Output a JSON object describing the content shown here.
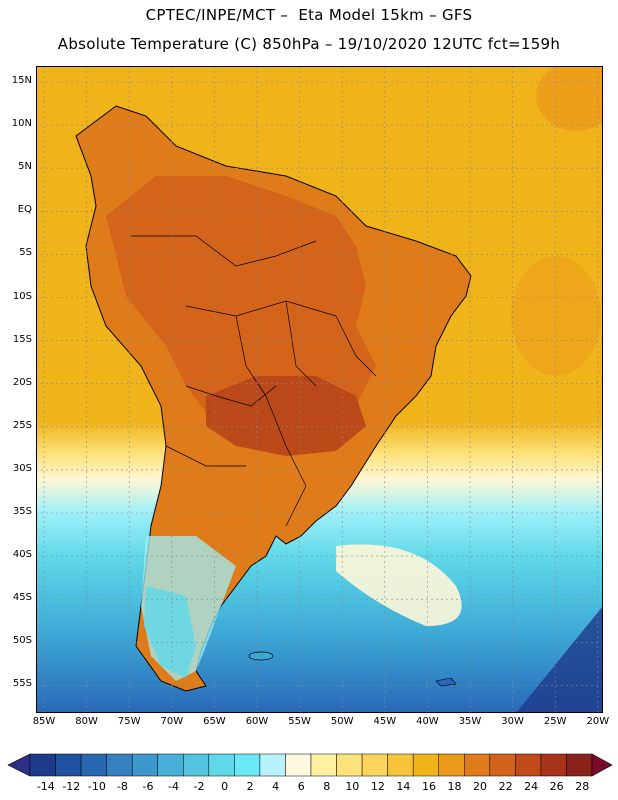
{
  "header": {
    "line1": "CPTEC/INPE/MCT –  Eta Model 15km – GFS",
    "line2": "Absolute Temperature (C) 850hPa – 19/10/2020 12UTC fct=159h"
  },
  "map": {
    "lat_labels": [
      "15N",
      "10N",
      "5N",
      "EQ",
      "5S",
      "10S",
      "15S",
      "20S",
      "25S",
      "30S",
      "35S",
      "40S",
      "45S",
      "50S",
      "55S"
    ],
    "lon_labels": [
      "85W",
      "80W",
      "75W",
      "70W",
      "65W",
      "60W",
      "55W",
      "50W",
      "45W",
      "40W",
      "35W",
      "30W",
      "25W",
      "20W"
    ],
    "colors": {
      "ocean_warm": "#f0b41a",
      "land_hot": "#e07b1a",
      "land_hotter": "#d3621a",
      "land_hottest": "#b8451a",
      "cool_transition": "#fde27a",
      "pale": "#fef7d8",
      "cyan_light": "#9ff0f8",
      "cyan": "#5fd8e8",
      "blue_mid": "#3ca8d6",
      "blue_dark": "#2868b8",
      "coastline": "#000000"
    }
  },
  "colorbar": {
    "labels": [
      "-14",
      "-12",
      "-10",
      "-8",
      "-6",
      "-4",
      "-2",
      "0",
      "2",
      "4",
      "6",
      "8",
      "10",
      "12",
      "14",
      "16",
      "18",
      "20",
      "22",
      "24",
      "26",
      "28"
    ],
    "colors": [
      "#1e3a8a",
      "#2050a0",
      "#2968b0",
      "#3780c0",
      "#3f98cc",
      "#48b0d8",
      "#52c4e0",
      "#5fd8ea",
      "#6ae8f6",
      "#b8f2fb",
      "#fff8e0",
      "#fef2a0",
      "#fde27a",
      "#fcd45a",
      "#f6c33a",
      "#f0b41a",
      "#ec9a1a",
      "#e07b1a",
      "#d3621a",
      "#c24a1a",
      "#a8321a",
      "#8a221a"
    ],
    "low_arrow_color": "#2b2f86",
    "high_arrow_color": "#7a0a2a"
  }
}
